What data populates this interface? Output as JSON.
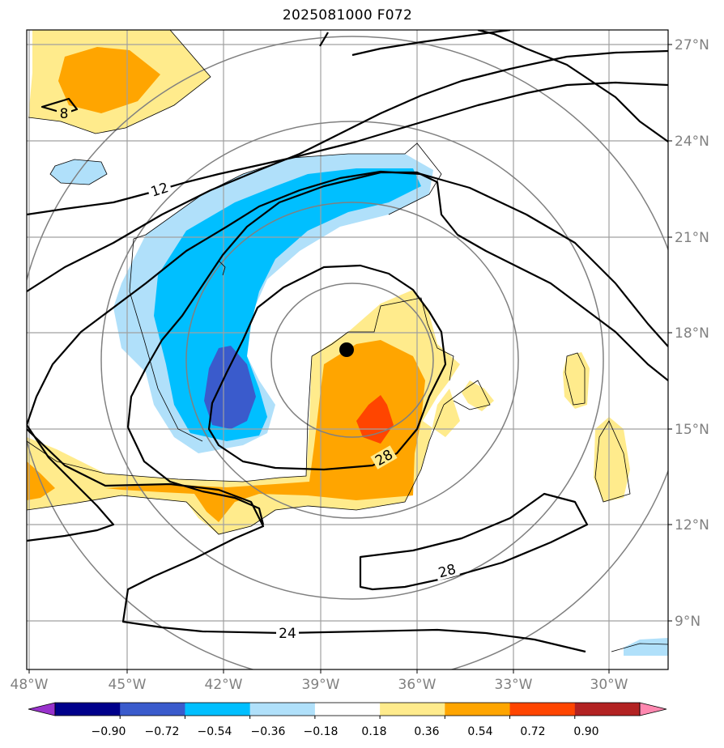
{
  "title": "2025081000 F072",
  "longitude_labels": [
    "48°W",
    "45°W",
    "42°W",
    "39°W",
    "36°W",
    "33°W",
    "30°W"
  ],
  "latitude_labels": [
    "27°N",
    "24°N",
    "21°N",
    "18°N",
    "15°N",
    "12°N",
    "9°N"
  ],
  "contour_labels": [
    "8",
    "12",
    "28",
    "28",
    "24"
  ],
  "colorbar": {
    "tick_labels": [
      "−0.90",
      "−0.72",
      "−0.54",
      "−0.36",
      "−0.18",
      "0.18",
      "0.36",
      "0.54",
      "0.72",
      "0.90"
    ],
    "colors": [
      "#9932cc",
      "#00008b",
      "#3a5bcc",
      "#00bfff",
      "#b0e0fa",
      "#ffffff",
      "#ffeb8c",
      "#ffa500",
      "#ff4500",
      "#b22222",
      "#ff88b0"
    ]
  },
  "colors": {
    "frame": "#000000",
    "grid": "#a0a0a0",
    "range_rings": "#808080",
    "contours": "#000000",
    "center_marker": "#000000"
  }
}
